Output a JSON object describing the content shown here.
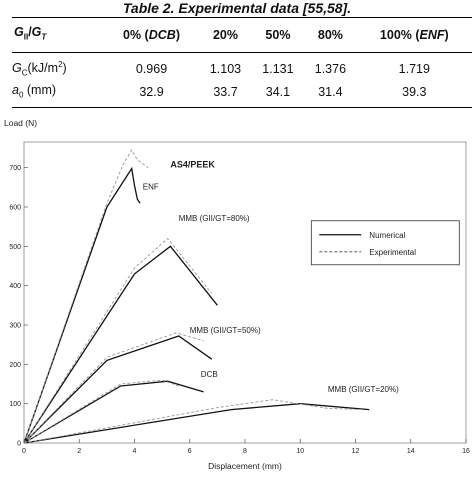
{
  "table": {
    "caption": "Table 2. Experimental data [55,58].",
    "headers": [
      "GII/GT",
      "0% (DCB)",
      "20%",
      "50%",
      "80%",
      "100% (ENF)"
    ],
    "rows": [
      {
        "label": "GC(kJ/m2)",
        "values": [
          "0.969",
          "1.103",
          "1.131",
          "1.376",
          "1.719"
        ]
      },
      {
        "label": "a0 (mm)",
        "values": [
          "32.9",
          "33.7",
          "34.1",
          "31.4",
          "39.3"
        ]
      }
    ]
  },
  "chart_data": {
    "type": "line",
    "title": "AS4/PEEK",
    "xlabel": "Displacement (mm)",
    "ylabel": "Load (N)",
    "xlim": [
      0,
      16
    ],
    "ylim": [
      0,
      750
    ],
    "xticks": [
      0,
      2,
      4,
      6,
      8,
      10,
      12,
      14,
      16
    ],
    "yticks": [
      0,
      100,
      200,
      300,
      400,
      500,
      600,
      700
    ],
    "grid": false,
    "legend": {
      "position": "right",
      "entries": [
        {
          "name": "Numerical",
          "style": "solid"
        },
        {
          "name": "Experimental",
          "style": "dashed"
        }
      ]
    },
    "series": [
      {
        "name": "ENF",
        "style": "solid",
        "points": [
          [
            0,
            0
          ],
          [
            3,
            600
          ],
          [
            3.9,
            698
          ],
          [
            4,
            655
          ],
          [
            4.1,
            620
          ],
          [
            4.2,
            610
          ]
        ]
      },
      {
        "name": "ENF",
        "style": "dashed",
        "points": [
          [
            0,
            0
          ],
          [
            3,
            610
          ],
          [
            3.6,
            710
          ],
          [
            3.9,
            745
          ],
          [
            4.1,
            720
          ],
          [
            4.5,
            700
          ]
        ]
      },
      {
        "name": "MMB (GII/GT=80%)",
        "style": "solid",
        "points": [
          [
            0,
            0
          ],
          [
            4,
            430
          ],
          [
            5.3,
            500
          ],
          [
            7,
            350
          ]
        ]
      },
      {
        "name": "MMB (GII/GT=80%)",
        "style": "dashed",
        "points": [
          [
            0,
            0
          ],
          [
            4,
            445
          ],
          [
            5.2,
            520
          ],
          [
            6.8,
            380
          ]
        ]
      },
      {
        "name": "MMB (GII/GT=50%)",
        "style": "solid",
        "points": [
          [
            0,
            0
          ],
          [
            3,
            210
          ],
          [
            5.6,
            272
          ],
          [
            6.8,
            213
          ]
        ]
      },
      {
        "name": "MMB (GII/GT=50%)",
        "style": "dashed",
        "points": [
          [
            0,
            0
          ],
          [
            3,
            218
          ],
          [
            5.5,
            280
          ],
          [
            6.5,
            260
          ]
        ]
      },
      {
        "name": "DCB",
        "style": "solid",
        "points": [
          [
            0,
            0
          ],
          [
            3.5,
            145
          ],
          [
            5.2,
            157
          ],
          [
            6.5,
            130
          ]
        ]
      },
      {
        "name": "DCB",
        "style": "dashed",
        "points": [
          [
            0,
            0
          ],
          [
            3.5,
            150
          ],
          [
            5,
            160
          ],
          [
            5.6,
            145
          ]
        ]
      },
      {
        "name": "MMB (GII/GT=20%)",
        "style": "solid",
        "points": [
          [
            0,
            0
          ],
          [
            7.5,
            85
          ],
          [
            10,
            100
          ],
          [
            12.5,
            85
          ]
        ]
      },
      {
        "name": "MMB (GII/GT=20%)",
        "style": "dashed",
        "points": [
          [
            0,
            0
          ],
          [
            7,
            90
          ],
          [
            9,
            110
          ],
          [
            11,
            88
          ],
          [
            12.3,
            85
          ]
        ]
      }
    ],
    "annotations": [
      {
        "text": "ENF",
        "x": 4.3,
        "y": 645
      },
      {
        "text": "MMB (GII/GT=80%)",
        "x": 5.6,
        "y": 565
      },
      {
        "text": "MMB (GII/GT=50%)",
        "x": 6.0,
        "y": 280
      },
      {
        "text": "DCB",
        "x": 6.4,
        "y": 168
      },
      {
        "text": "MMB (GII/GT=20%)",
        "x": 11.0,
        "y": 130
      }
    ]
  }
}
